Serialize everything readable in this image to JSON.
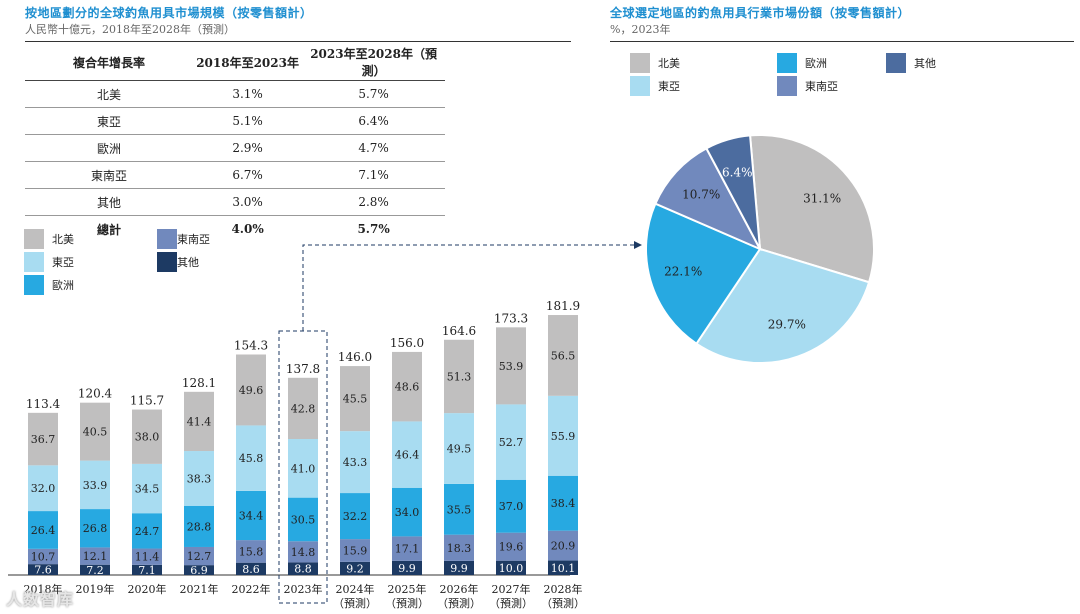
{
  "left_panel": {
    "title": "按地區劃分的全球釣魚用具市場規模（按零售額計）",
    "subtitle": "人民幣十億元，2018年至2028年（預測）"
  },
  "right_panel": {
    "title": "全球選定地區的釣魚用具行業市場份額（按零售額計）",
    "subtitle": "%，2023年"
  },
  "growth_table": {
    "headers": [
      "複合年增長率",
      "2018年至2023年",
      "2023年至2028年（預測）"
    ],
    "rows": [
      [
        "北美",
        "3.1%",
        "5.7%"
      ],
      [
        "東亞",
        "5.1%",
        "6.4%"
      ],
      [
        "歐洲",
        "2.9%",
        "4.7%"
      ],
      [
        "東南亞",
        "6.7%",
        "7.1%"
      ],
      [
        "其他",
        "3.0%",
        "2.8%"
      ],
      [
        "總計",
        "4.0%",
        "5.7%"
      ]
    ]
  },
  "legend_bar": [
    "北美",
    "東亞",
    "歐洲",
    "東南亞",
    "其他"
  ],
  "legend_pie": [
    "北美",
    "東亞",
    "歐洲",
    "東南亞",
    "其他"
  ],
  "colors": {
    "north_america": "#c0bfbf",
    "east_asia": "#a8dcf1",
    "europe": "#27a9e1",
    "southeast_asia": "#7189bd",
    "other": "#1d3a63",
    "other_pie": "#4c6c9f",
    "title": "#1f8fd0"
  },
  "watermark": "人数智库",
  "chart_data": [
    {
      "type": "bar",
      "stacked": true,
      "title": "按地區劃分的全球釣魚用具市場規模（按零售額計）",
      "ylabel": "人民幣十億元",
      "categories": [
        "2018年",
        "2019年",
        "2020年",
        "2021年",
        "2022年",
        "2023年",
        "2024年（預測）",
        "2025年（預測）",
        "2026年（預測）",
        "2027年（預測）",
        "2028年（預測）"
      ],
      "category_lines": [
        [
          "2018年"
        ],
        [
          "2019年"
        ],
        [
          "2020年"
        ],
        [
          "2021年"
        ],
        [
          "2022年"
        ],
        [
          "2023年"
        ],
        [
          "2024年",
          "（預測）"
        ],
        [
          "2025年",
          "（預測）"
        ],
        [
          "2026年",
          "（預測）"
        ],
        [
          "2027年",
          "（預測）"
        ],
        [
          "2028年",
          "（預測）"
        ]
      ],
      "highlight_category": "2023年",
      "series": [
        {
          "name": "其他",
          "color": "#1d3a63",
          "values": [
            7.6,
            7.2,
            7.1,
            6.9,
            8.6,
            8.8,
            9.2,
            9.9,
            9.9,
            10.0,
            10.1
          ]
        },
        {
          "name": "東南亞",
          "color": "#7189bd",
          "values": [
            10.7,
            12.1,
            11.4,
            12.7,
            15.8,
            14.8,
            15.9,
            17.1,
            18.3,
            19.6,
            20.9
          ]
        },
        {
          "name": "歐洲",
          "color": "#27a9e1",
          "values": [
            26.4,
            26.8,
            24.7,
            28.8,
            34.4,
            30.5,
            32.2,
            34.0,
            35.5,
            37.0,
            38.4
          ]
        },
        {
          "name": "東亞",
          "color": "#a8dcf1",
          "values": [
            32.0,
            33.9,
            34.5,
            38.3,
            45.8,
            41.0,
            43.3,
            46.4,
            49.5,
            52.7,
            55.9
          ]
        },
        {
          "name": "北美",
          "color": "#c0bfbf",
          "values": [
            36.7,
            40.5,
            38.0,
            41.4,
            49.6,
            42.8,
            45.5,
            48.6,
            51.3,
            53.9,
            56.5
          ]
        }
      ],
      "totals": [
        113.4,
        120.4,
        115.7,
        128.1,
        154.3,
        137.8,
        146.0,
        156.0,
        164.6,
        173.3,
        181.9
      ],
      "ylim": [
        0,
        190
      ]
    },
    {
      "type": "pie",
      "title": "全球選定地區的釣魚用具行業市場份額（按零售額計）",
      "year": "2023年",
      "slices": [
        {
          "name": "北美",
          "value": 31.1,
          "label": "31.1%",
          "color": "#c0bfbf"
        },
        {
          "name": "東亞",
          "value": 29.7,
          "label": "29.7%",
          "color": "#a8dcf1"
        },
        {
          "name": "歐洲",
          "value": 22.1,
          "label": "22.1%",
          "color": "#27a9e1"
        },
        {
          "name": "東南亞",
          "value": 10.7,
          "label": "10.7%",
          "color": "#7189bd"
        },
        {
          "name": "其他",
          "value": 6.4,
          "label": "6.4%",
          "color": "#4c6c9f"
        }
      ]
    }
  ]
}
